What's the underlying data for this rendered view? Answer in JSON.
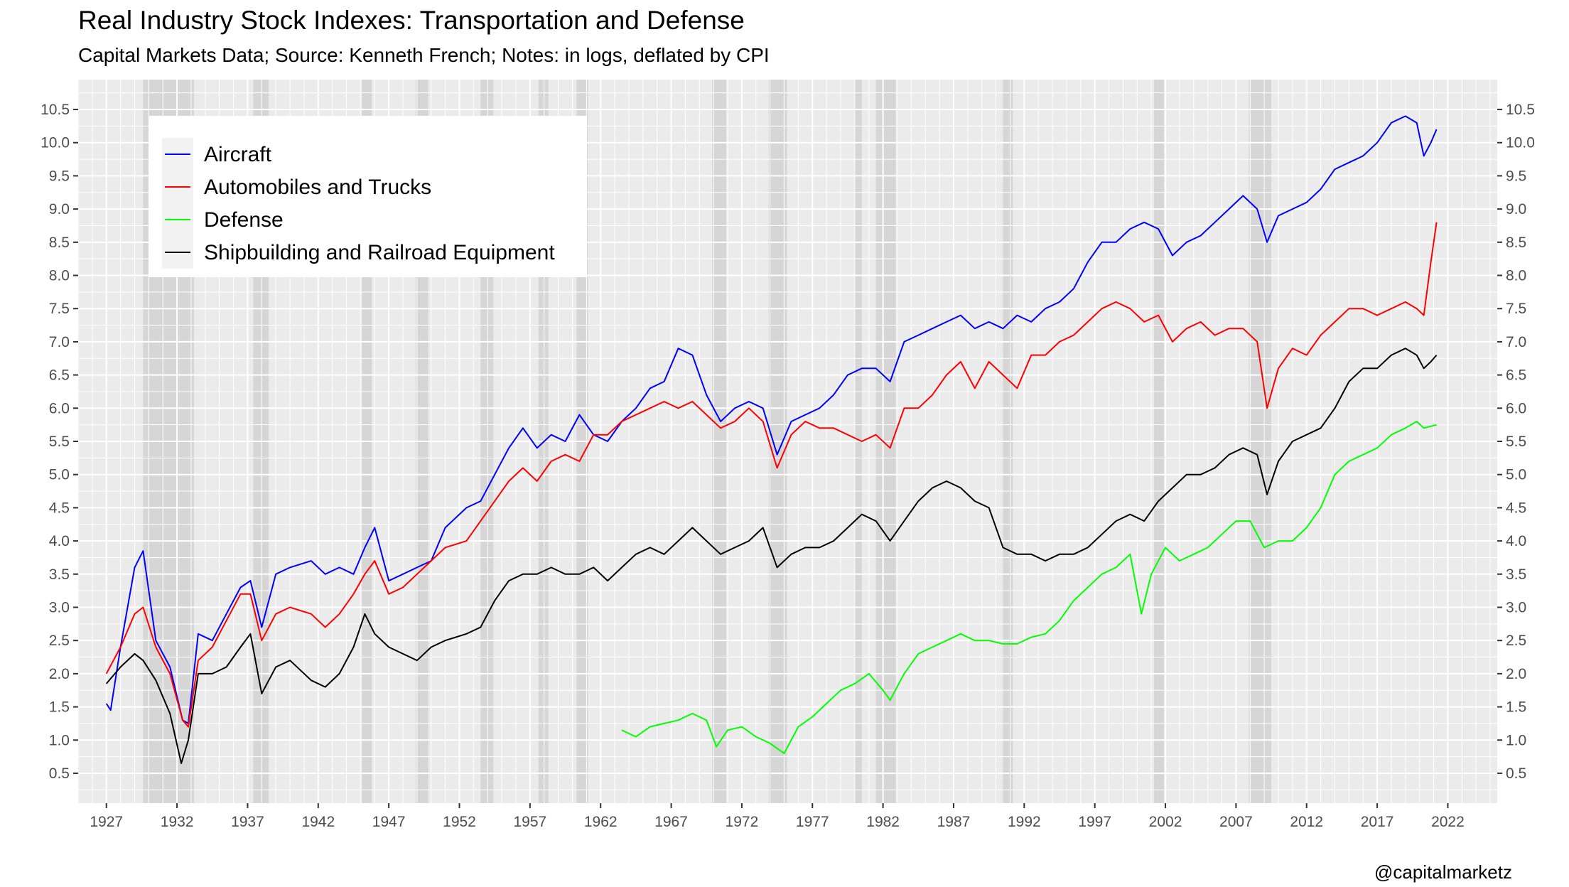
{
  "title": "Real Industry Stock Indexes: Transportation and Defense",
  "subtitle": "Capital Markets Data; Source: Kenneth French; Notes: in logs, deflated by CPI",
  "credit": "@capitalmarketz",
  "chart_data": {
    "type": "line",
    "xlim": [
      1925.0,
      2025.5
    ],
    "ylim": [
      0.05,
      10.95
    ],
    "x_ticks": [
      1927,
      1932,
      1937,
      1942,
      1947,
      1952,
      1957,
      1962,
      1967,
      1972,
      1977,
      1982,
      1987,
      1992,
      1997,
      2002,
      2007,
      2012,
      2017,
      2022
    ],
    "y_ticks": [
      0.5,
      1.0,
      1.5,
      2.0,
      2.5,
      3.0,
      3.5,
      4.0,
      4.5,
      5.0,
      5.5,
      6.0,
      6.5,
      7.0,
      7.5,
      8.0,
      8.5,
      9.0,
      9.5,
      10.0,
      10.5
    ],
    "y_tick_labels": [
      "0.5",
      "1.0",
      "1.5",
      "2.0",
      "2.5",
      "3.0",
      "3.5",
      "4.0",
      "4.5",
      "5.0",
      "5.5",
      "6.0",
      "6.5",
      "7.0",
      "7.5",
      "8.0",
      "8.5",
      "9.0",
      "9.5",
      "10.0",
      "10.5"
    ],
    "grid": true,
    "legend_position": "top-left",
    "recessions": [
      [
        1929.6,
        1933.2
      ],
      [
        1937.4,
        1938.5
      ],
      [
        1945.1,
        1945.8
      ],
      [
        1948.9,
        1949.8
      ],
      [
        1953.5,
        1954.4
      ],
      [
        1957.6,
        1958.3
      ],
      [
        1960.3,
        1961.1
      ],
      [
        1969.9,
        1970.9
      ],
      [
        1973.9,
        1975.2
      ],
      [
        1980.0,
        1980.5
      ],
      [
        1981.5,
        1982.9
      ],
      [
        1990.5,
        1991.2
      ],
      [
        2001.2,
        2001.9
      ],
      [
        2007.9,
        2009.5
      ]
    ],
    "series": [
      {
        "name": "Aircraft",
        "color": "#0000ff",
        "x": [
          1927.0,
          1927.3,
          1928.0,
          1929.0,
          1929.6,
          1930.5,
          1931.5,
          1932.4,
          1932.8,
          1933.5,
          1934.5,
          1935.5,
          1936.5,
          1937.2,
          1938.0,
          1939.0,
          1940.0,
          1941.5,
          1942.5,
          1943.5,
          1944.5,
          1945.3,
          1946.0,
          1947.0,
          1948.0,
          1949.0,
          1950.0,
          1951.0,
          1952.5,
          1953.5,
          1954.5,
          1955.5,
          1956.5,
          1957.5,
          1958.5,
          1959.5,
          1960.5,
          1961.5,
          1962.5,
          1963.5,
          1964.5,
          1965.5,
          1966.5,
          1967.5,
          1968.5,
          1969.5,
          1970.5,
          1971.5,
          1972.5,
          1973.5,
          1974.5,
          1975.5,
          1976.5,
          1977.5,
          1978.5,
          1979.5,
          1980.5,
          1981.5,
          1982.5,
          1983.5,
          1984.5,
          1985.5,
          1986.5,
          1987.5,
          1988.5,
          1989.5,
          1990.5,
          1991.5,
          1992.5,
          1993.5,
          1994.5,
          1995.5,
          1996.5,
          1997.5,
          1998.5,
          1999.5,
          2000.5,
          2001.5,
          2002.5,
          2003.5,
          2004.5,
          2005.5,
          2006.5,
          2007.5,
          2008.5,
          2009.2,
          2010.0,
          2011.0,
          2012.0,
          2013.0,
          2014.0,
          2015.0,
          2016.0,
          2017.0,
          2018.0,
          2019.0,
          2019.8,
          2020.3,
          2020.8,
          2021.2
        ],
        "y": [
          1.55,
          1.45,
          2.4,
          3.6,
          3.85,
          2.5,
          2.1,
          1.3,
          1.25,
          2.6,
          2.5,
          2.9,
          3.3,
          3.4,
          2.7,
          3.5,
          3.6,
          3.7,
          3.5,
          3.6,
          3.5,
          3.9,
          4.2,
          3.4,
          3.5,
          3.6,
          3.7,
          4.2,
          4.5,
          4.6,
          5.0,
          5.4,
          5.7,
          5.4,
          5.6,
          5.5,
          5.9,
          5.6,
          5.5,
          5.8,
          6.0,
          6.3,
          6.4,
          6.9,
          6.8,
          6.2,
          5.8,
          6.0,
          6.1,
          6.0,
          5.3,
          5.8,
          5.9,
          6.0,
          6.2,
          6.5,
          6.6,
          6.6,
          6.4,
          7.0,
          7.1,
          7.2,
          7.3,
          7.4,
          7.2,
          7.3,
          7.2,
          7.4,
          7.3,
          7.5,
          7.6,
          7.8,
          8.2,
          8.5,
          8.5,
          8.7,
          8.8,
          8.7,
          8.3,
          8.5,
          8.6,
          8.8,
          9.0,
          9.2,
          9.0,
          8.5,
          8.9,
          9.0,
          9.1,
          9.3,
          9.6,
          9.7,
          9.8,
          10.0,
          10.3,
          10.4,
          10.3,
          9.8,
          10.0,
          10.2
        ]
      },
      {
        "name": "Automobiles and Trucks",
        "color": "#ff0000",
        "x": [
          1927.0,
          1928.0,
          1929.0,
          1929.6,
          1930.5,
          1931.5,
          1932.4,
          1932.8,
          1933.5,
          1934.5,
          1935.5,
          1936.5,
          1937.2,
          1938.0,
          1939.0,
          1940.0,
          1941.5,
          1942.5,
          1943.5,
          1944.5,
          1945.3,
          1946.0,
          1947.0,
          1948.0,
          1949.0,
          1950.0,
          1951.0,
          1952.5,
          1953.5,
          1954.5,
          1955.5,
          1956.5,
          1957.5,
          1958.5,
          1959.5,
          1960.5,
          1961.5,
          1962.5,
          1963.5,
          1964.5,
          1965.5,
          1966.5,
          1967.5,
          1968.5,
          1969.5,
          1970.5,
          1971.5,
          1972.5,
          1973.5,
          1974.5,
          1975.5,
          1976.5,
          1977.5,
          1978.5,
          1979.5,
          1980.5,
          1981.5,
          1982.5,
          1983.5,
          1984.5,
          1985.5,
          1986.5,
          1987.5,
          1988.5,
          1989.5,
          1990.5,
          1991.5,
          1992.5,
          1993.5,
          1994.5,
          1995.5,
          1996.5,
          1997.5,
          1998.5,
          1999.5,
          2000.5,
          2001.5,
          2002.5,
          2003.5,
          2004.5,
          2005.5,
          2006.5,
          2007.5,
          2008.5,
          2009.2,
          2010.0,
          2011.0,
          2012.0,
          2013.0,
          2014.0,
          2015.0,
          2016.0,
          2017.0,
          2018.0,
          2019.0,
          2019.8,
          2020.3,
          2020.8,
          2021.2
        ],
        "y": [
          2.0,
          2.4,
          2.9,
          3.0,
          2.4,
          2.0,
          1.3,
          1.2,
          2.2,
          2.4,
          2.8,
          3.2,
          3.2,
          2.5,
          2.9,
          3.0,
          2.9,
          2.7,
          2.9,
          3.2,
          3.5,
          3.7,
          3.2,
          3.3,
          3.5,
          3.7,
          3.9,
          4.0,
          4.3,
          4.6,
          4.9,
          5.1,
          4.9,
          5.2,
          5.3,
          5.2,
          5.6,
          5.6,
          5.8,
          5.9,
          6.0,
          6.1,
          6.0,
          6.1,
          5.9,
          5.7,
          5.8,
          6.0,
          5.8,
          5.1,
          5.6,
          5.8,
          5.7,
          5.7,
          5.6,
          5.5,
          5.6,
          5.4,
          6.0,
          6.0,
          6.2,
          6.5,
          6.7,
          6.3,
          6.7,
          6.5,
          6.3,
          6.8,
          6.8,
          7.0,
          7.1,
          7.3,
          7.5,
          7.6,
          7.5,
          7.3,
          7.4,
          7.0,
          7.2,
          7.3,
          7.1,
          7.2,
          7.2,
          7.0,
          6.0,
          6.6,
          6.9,
          6.8,
          7.1,
          7.3,
          7.5,
          7.5,
          7.4,
          7.5,
          7.6,
          7.5,
          7.4,
          8.2,
          8.8
        ]
      },
      {
        "name": "Defense",
        "color": "#00ff00",
        "x": [
          1963.5,
          1964.5,
          1965.5,
          1966.5,
          1967.5,
          1968.5,
          1969.5,
          1970.2,
          1971.0,
          1972.0,
          1973.0,
          1974.0,
          1975.0,
          1976.0,
          1977.0,
          1978.0,
          1979.0,
          1980.0,
          1981.0,
          1982.0,
          1982.5,
          1983.5,
          1984.5,
          1985.5,
          1986.5,
          1987.5,
          1988.5,
          1989.5,
          1990.5,
          1991.5,
          1992.5,
          1993.5,
          1994.5,
          1995.5,
          1996.5,
          1997.5,
          1998.5,
          1999.5,
          2000.3,
          2001.0,
          2002.0,
          2003.0,
          2004.0,
          2005.0,
          2006.0,
          2007.0,
          2008.0,
          2009.0,
          2010.0,
          2011.0,
          2012.0,
          2013.0,
          2014.0,
          2015.0,
          2016.0,
          2017.0,
          2018.0,
          2019.0,
          2019.8,
          2020.3,
          2021.2
        ],
        "y": [
          1.15,
          1.05,
          1.2,
          1.25,
          1.3,
          1.4,
          1.3,
          0.9,
          1.15,
          1.2,
          1.05,
          0.95,
          0.8,
          1.2,
          1.35,
          1.55,
          1.75,
          1.85,
          2.0,
          1.75,
          1.6,
          2.0,
          2.3,
          2.4,
          2.5,
          2.6,
          2.5,
          2.5,
          2.45,
          2.45,
          2.55,
          2.6,
          2.8,
          3.1,
          3.3,
          3.5,
          3.6,
          3.8,
          2.9,
          3.5,
          3.9,
          3.7,
          3.8,
          3.9,
          4.1,
          4.3,
          4.3,
          3.9,
          4.0,
          4.0,
          4.2,
          4.5,
          5.0,
          5.2,
          5.3,
          5.4,
          5.6,
          5.7,
          5.8,
          5.7,
          5.75
        ]
      },
      {
        "name": "Shipbuilding and Railroad Equipment",
        "color": "#000000",
        "x": [
          1927.0,
          1928.0,
          1929.0,
          1929.6,
          1930.5,
          1931.5,
          1932.3,
          1932.8,
          1933.5,
          1934.5,
          1935.5,
          1936.5,
          1937.2,
          1938.0,
          1939.0,
          1940.0,
          1941.5,
          1942.5,
          1943.5,
          1944.5,
          1945.3,
          1946.0,
          1947.0,
          1948.0,
          1949.0,
          1950.0,
          1951.0,
          1952.5,
          1953.5,
          1954.5,
          1955.5,
          1956.5,
          1957.5,
          1958.5,
          1959.5,
          1960.5,
          1961.5,
          1962.5,
          1963.5,
          1964.5,
          1965.5,
          1966.5,
          1967.5,
          1968.5,
          1969.5,
          1970.5,
          1971.5,
          1972.5,
          1973.5,
          1974.5,
          1975.5,
          1976.5,
          1977.5,
          1978.5,
          1979.5,
          1980.5,
          1981.5,
          1982.5,
          1983.5,
          1984.5,
          1985.5,
          1986.5,
          1987.5,
          1988.5,
          1989.5,
          1990.5,
          1991.5,
          1992.5,
          1993.5,
          1994.5,
          1995.5,
          1996.5,
          1997.5,
          1998.5,
          1999.5,
          2000.5,
          2001.5,
          2002.5,
          2003.5,
          2004.5,
          2005.5,
          2006.5,
          2007.5,
          2008.5,
          2009.2,
          2010.0,
          2011.0,
          2012.0,
          2013.0,
          2014.0,
          2015.0,
          2016.0,
          2017.0,
          2018.0,
          2019.0,
          2019.8,
          2020.3,
          2020.8,
          2021.2
        ],
        "y": [
          1.85,
          2.1,
          2.3,
          2.2,
          1.9,
          1.4,
          0.65,
          1.0,
          2.0,
          2.0,
          2.1,
          2.4,
          2.6,
          1.7,
          2.1,
          2.2,
          1.9,
          1.8,
          2.0,
          2.4,
          2.9,
          2.6,
          2.4,
          2.3,
          2.2,
          2.4,
          2.5,
          2.6,
          2.7,
          3.1,
          3.4,
          3.5,
          3.5,
          3.6,
          3.5,
          3.5,
          3.6,
          3.4,
          3.6,
          3.8,
          3.9,
          3.8,
          4.0,
          4.2,
          4.0,
          3.8,
          3.9,
          4.0,
          4.2,
          3.6,
          3.8,
          3.9,
          3.9,
          4.0,
          4.2,
          4.4,
          4.3,
          4.0,
          4.3,
          4.6,
          4.8,
          4.9,
          4.8,
          4.6,
          4.5,
          3.9,
          3.8,
          3.8,
          3.7,
          3.8,
          3.8,
          3.9,
          4.1,
          4.3,
          4.4,
          4.3,
          4.6,
          4.8,
          5.0,
          5.0,
          5.1,
          5.3,
          5.4,
          5.3,
          4.7,
          5.2,
          5.5,
          5.6,
          5.7,
          6.0,
          6.4,
          6.6,
          6.6,
          6.8,
          6.9,
          6.8,
          6.6,
          6.7,
          6.8
        ]
      }
    ]
  }
}
